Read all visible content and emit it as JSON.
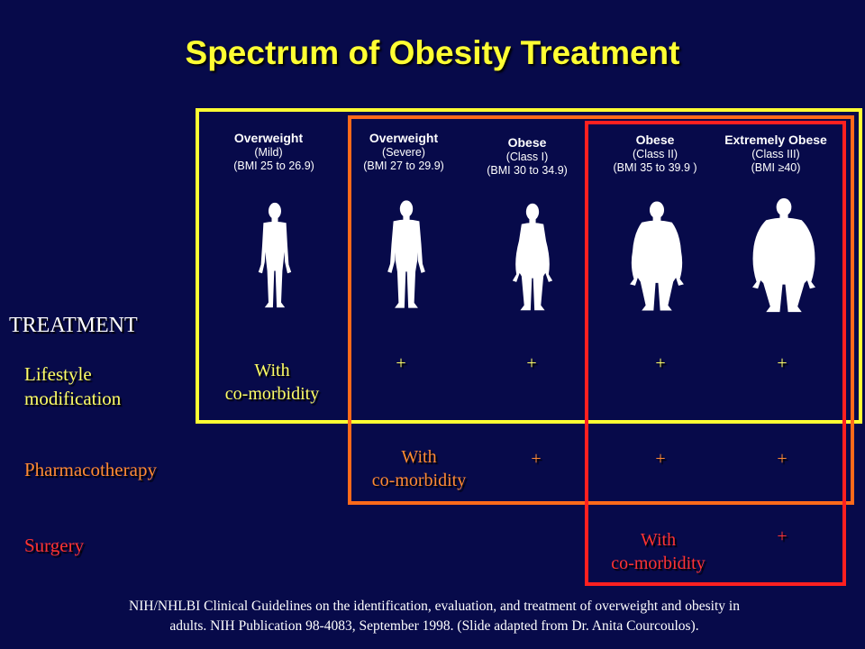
{
  "title": "Spectrum of Obesity Treatment",
  "colors": {
    "background": "#070a4a",
    "yellow": "#ffff33",
    "orange": "#ff6a1a",
    "red": "#ff2020",
    "text": "#ffffff"
  },
  "categories": [
    {
      "name": "Overweight",
      "sub1": "(Mild)",
      "sub2": "(BMI 25 to 26.9)"
    },
    {
      "name": "Overweight",
      "sub1": "(Severe)",
      "sub2": "(BMI 27 to 29.9)"
    },
    {
      "name": "Obese",
      "sub1": "(Class I)",
      "sub2": "(BMI 30 to 34.9)"
    },
    {
      "name": "Obese",
      "sub1": "(Class II)",
      "sub2": "(BMI 35 to 39.9 )"
    },
    {
      "name": "Extremely Obese",
      "sub1": "(Class III)",
      "sub2": "(BMI ≥40)"
    }
  ],
  "treatment_header": "TREATMENT",
  "rows": {
    "lifestyle": {
      "label_line1": "Lifestyle",
      "label_line2": "modification",
      "cells": [
        "With",
        "co-morbidity",
        "+",
        "+",
        "+",
        "+"
      ]
    },
    "pharmacotherapy": {
      "label": "Pharmacotherapy",
      "cells": [
        "With",
        "co-morbidity",
        "+",
        "+",
        "+"
      ]
    },
    "surgery": {
      "label": "Surgery",
      "cells": [
        "With",
        "co-morbidity",
        "+"
      ]
    }
  },
  "footnote": {
    "line1": "NIH/NHLBI Clinical Guidelines on the identification, evaluation, and treatment of overweight and obesity in",
    "line2": "adults. NIH Publication 98-4083, September 1998. (Slide adapted from Dr. Anita Courcoulos)."
  }
}
